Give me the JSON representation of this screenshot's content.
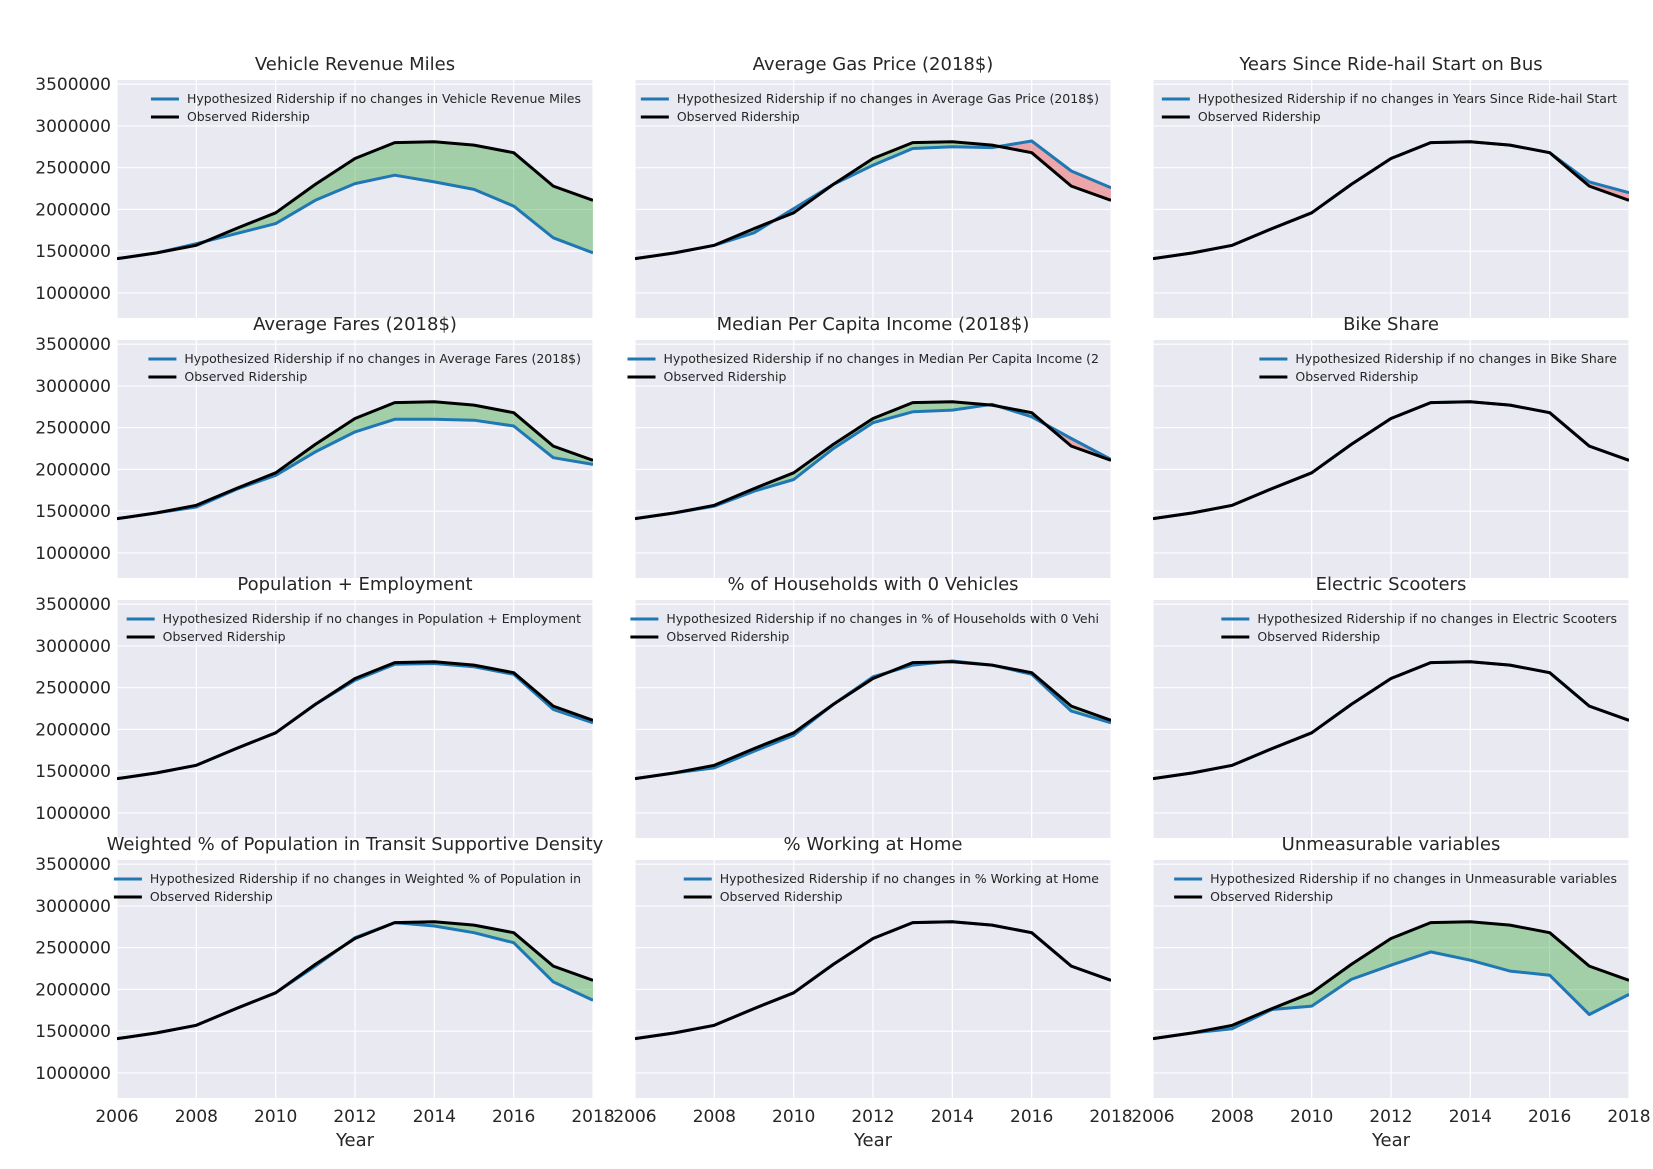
{
  "figure": {
    "background": "#ffffff",
    "colors": {
      "axes_bg": "#e9e9f1",
      "grid": "#ffffff",
      "observed": "#000000",
      "hypothesized": "#1f77b4",
      "fill_gain": "#4caf50",
      "fill_loss": "#ef5350"
    }
  },
  "chart_data": [
    {
      "type": "line",
      "title": "Vehicle Revenue Miles",
      "xlabel": "",
      "ylabel": "",
      "xlim": [
        2006,
        2018
      ],
      "ylim": [
        700000,
        3550000
      ],
      "xticks": [
        2006,
        2008,
        2010,
        2012,
        2014,
        2016,
        2018
      ],
      "yticks": [
        1000000,
        1500000,
        2000000,
        2500000,
        3000000,
        3500000
      ],
      "show_xticks": false,
      "show_yticks": true,
      "grid": true,
      "legend_location": "top-right",
      "x": [
        2006,
        2007,
        2008,
        2009,
        2010,
        2011,
        2012,
        2013,
        2014,
        2015,
        2016,
        2017,
        2018
      ],
      "series": [
        {
          "name": "Hypothesized Ridership if no changes in Vehicle Revenue Miles",
          "values": [
            1410000,
            1480000,
            1590000,
            1710000,
            1830000,
            2110000,
            2310000,
            2410000,
            2330000,
            2240000,
            2040000,
            1660000,
            1480000
          ]
        },
        {
          "name": "Observed Ridership",
          "values": [
            1410000,
            1480000,
            1570000,
            1770000,
            1960000,
            2300000,
            2610000,
            2800000,
            2810000,
            2770000,
            2680000,
            2280000,
            2110000
          ]
        }
      ]
    },
    {
      "type": "line",
      "title": "Average Gas Price (2018$)",
      "xlabel": "",
      "ylabel": "",
      "xlim": [
        2006,
        2018
      ],
      "ylim": [
        700000,
        3550000
      ],
      "xticks": [
        2006,
        2008,
        2010,
        2012,
        2014,
        2016,
        2018
      ],
      "yticks": [
        1000000,
        1500000,
        2000000,
        2500000,
        3000000,
        3500000
      ],
      "show_xticks": false,
      "show_yticks": false,
      "grid": true,
      "legend_location": "top-right",
      "x": [
        2006,
        2007,
        2008,
        2009,
        2010,
        2011,
        2012,
        2013,
        2014,
        2015,
        2016,
        2017,
        2018
      ],
      "series": [
        {
          "name": "Hypothesized Ridership if no changes in Average Gas Price (2018$)",
          "values": [
            1410000,
            1480000,
            1570000,
            1720000,
            2010000,
            2300000,
            2530000,
            2730000,
            2750000,
            2740000,
            2820000,
            2460000,
            2260000
          ]
        },
        {
          "name": "Observed Ridership",
          "values": [
            1410000,
            1480000,
            1570000,
            1770000,
            1960000,
            2300000,
            2610000,
            2800000,
            2810000,
            2770000,
            2680000,
            2280000,
            2110000
          ]
        }
      ]
    },
    {
      "type": "line",
      "title": "Years Since Ride-hail Start on Bus",
      "xlabel": "",
      "ylabel": "",
      "xlim": [
        2006,
        2018
      ],
      "ylim": [
        700000,
        3550000
      ],
      "xticks": [
        2006,
        2008,
        2010,
        2012,
        2014,
        2016,
        2018
      ],
      "yticks": [
        1000000,
        1500000,
        2000000,
        2500000,
        3000000,
        3500000
      ],
      "show_xticks": false,
      "show_yticks": false,
      "grid": true,
      "legend_location": "top-right",
      "x": [
        2006,
        2007,
        2008,
        2009,
        2010,
        2011,
        2012,
        2013,
        2014,
        2015,
        2016,
        2017,
        2018
      ],
      "series": [
        {
          "name": "Hypothesized Ridership if no changes in Years Since Ride-hail Start",
          "values": [
            1410000,
            1480000,
            1570000,
            1770000,
            1960000,
            2300000,
            2610000,
            2800000,
            2810000,
            2770000,
            2680000,
            2330000,
            2200000
          ]
        },
        {
          "name": "Observed Ridership",
          "values": [
            1410000,
            1480000,
            1570000,
            1770000,
            1960000,
            2300000,
            2610000,
            2800000,
            2810000,
            2770000,
            2680000,
            2280000,
            2110000
          ]
        }
      ]
    },
    {
      "type": "line",
      "title": "Average Fares (2018$)",
      "xlabel": "",
      "ylabel": "",
      "xlim": [
        2006,
        2018
      ],
      "ylim": [
        700000,
        3550000
      ],
      "xticks": [
        2006,
        2008,
        2010,
        2012,
        2014,
        2016,
        2018
      ],
      "yticks": [
        1000000,
        1500000,
        2000000,
        2500000,
        3000000,
        3500000
      ],
      "show_xticks": false,
      "show_yticks": true,
      "grid": true,
      "legend_location": "top-right",
      "x": [
        2006,
        2007,
        2008,
        2009,
        2010,
        2011,
        2012,
        2013,
        2014,
        2015,
        2016,
        2017,
        2018
      ],
      "series": [
        {
          "name": "Hypothesized Ridership if no changes in Average Fares (2018$)",
          "values": [
            1410000,
            1480000,
            1550000,
            1760000,
            1930000,
            2210000,
            2450000,
            2600000,
            2600000,
            2590000,
            2520000,
            2140000,
            2060000
          ]
        },
        {
          "name": "Observed Ridership",
          "values": [
            1410000,
            1480000,
            1570000,
            1770000,
            1960000,
            2300000,
            2610000,
            2800000,
            2810000,
            2770000,
            2680000,
            2280000,
            2110000
          ]
        }
      ]
    },
    {
      "type": "line",
      "title": "Median Per Capita Income (2018$)",
      "xlabel": "",
      "ylabel": "",
      "xlim": [
        2006,
        2018
      ],
      "ylim": [
        700000,
        3550000
      ],
      "xticks": [
        2006,
        2008,
        2010,
        2012,
        2014,
        2016,
        2018
      ],
      "yticks": [
        1000000,
        1500000,
        2000000,
        2500000,
        3000000,
        3500000
      ],
      "show_xticks": false,
      "show_yticks": false,
      "grid": true,
      "legend_location": "top-right",
      "x": [
        2006,
        2007,
        2008,
        2009,
        2010,
        2011,
        2012,
        2013,
        2014,
        2015,
        2016,
        2017,
        2018
      ],
      "series": [
        {
          "name": "Hypothesized Ridership if no changes in Median Per Capita Income (2",
          "values": [
            1410000,
            1480000,
            1560000,
            1740000,
            1880000,
            2250000,
            2560000,
            2690000,
            2710000,
            2780000,
            2630000,
            2370000,
            2120000
          ]
        },
        {
          "name": "Observed Ridership",
          "values": [
            1410000,
            1480000,
            1570000,
            1770000,
            1960000,
            2300000,
            2610000,
            2800000,
            2810000,
            2770000,
            2680000,
            2280000,
            2110000
          ]
        }
      ]
    },
    {
      "type": "line",
      "title": "Bike Share",
      "xlabel": "",
      "ylabel": "",
      "xlim": [
        2006,
        2018
      ],
      "ylim": [
        700000,
        3550000
      ],
      "xticks": [
        2006,
        2008,
        2010,
        2012,
        2014,
        2016,
        2018
      ],
      "yticks": [
        1000000,
        1500000,
        2000000,
        2500000,
        3000000,
        3500000
      ],
      "show_xticks": false,
      "show_yticks": false,
      "grid": true,
      "legend_location": "top-right",
      "x": [
        2006,
        2007,
        2008,
        2009,
        2010,
        2011,
        2012,
        2013,
        2014,
        2015,
        2016,
        2017,
        2018
      ],
      "series": [
        {
          "name": "Hypothesized Ridership if no changes in Bike Share",
          "values": [
            1410000,
            1480000,
            1570000,
            1770000,
            1960000,
            2300000,
            2610000,
            2800000,
            2810000,
            2770000,
            2680000,
            2280000,
            2110000
          ]
        },
        {
          "name": "Observed Ridership",
          "values": [
            1410000,
            1480000,
            1570000,
            1770000,
            1960000,
            2300000,
            2610000,
            2800000,
            2810000,
            2770000,
            2680000,
            2280000,
            2110000
          ]
        }
      ]
    },
    {
      "type": "line",
      "title": "Population + Employment",
      "xlabel": "",
      "ylabel": "",
      "xlim": [
        2006,
        2018
      ],
      "ylim": [
        700000,
        3550000
      ],
      "xticks": [
        2006,
        2008,
        2010,
        2012,
        2014,
        2016,
        2018
      ],
      "yticks": [
        1000000,
        1500000,
        2000000,
        2500000,
        3000000,
        3500000
      ],
      "show_xticks": false,
      "show_yticks": true,
      "grid": true,
      "legend_location": "top-right",
      "x": [
        2006,
        2007,
        2008,
        2009,
        2010,
        2011,
        2012,
        2013,
        2014,
        2015,
        2016,
        2017,
        2018
      ],
      "series": [
        {
          "name": "Hypothesized Ridership if no changes in Population + Employment",
          "values": [
            1410000,
            1480000,
            1570000,
            1770000,
            1960000,
            2300000,
            2590000,
            2780000,
            2790000,
            2750000,
            2660000,
            2240000,
            2080000
          ]
        },
        {
          "name": "Observed Ridership",
          "values": [
            1410000,
            1480000,
            1570000,
            1770000,
            1960000,
            2300000,
            2610000,
            2800000,
            2810000,
            2770000,
            2680000,
            2280000,
            2110000
          ]
        }
      ]
    },
    {
      "type": "line",
      "title": "% of Households with 0 Vehicles",
      "xlabel": "",
      "ylabel": "",
      "xlim": [
        2006,
        2018
      ],
      "ylim": [
        700000,
        3550000
      ],
      "xticks": [
        2006,
        2008,
        2010,
        2012,
        2014,
        2016,
        2018
      ],
      "yticks": [
        1000000,
        1500000,
        2000000,
        2500000,
        3000000,
        3500000
      ],
      "show_xticks": false,
      "show_yticks": false,
      "grid": true,
      "legend_location": "top-right",
      "x": [
        2006,
        2007,
        2008,
        2009,
        2010,
        2011,
        2012,
        2013,
        2014,
        2015,
        2016,
        2017,
        2018
      ],
      "series": [
        {
          "name": "Hypothesized Ridership if no changes in % of Households with 0 Vehi",
          "values": [
            1410000,
            1480000,
            1540000,
            1740000,
            1930000,
            2300000,
            2630000,
            2770000,
            2820000,
            2770000,
            2660000,
            2220000,
            2080000
          ]
        },
        {
          "name": "Observed Ridership",
          "values": [
            1410000,
            1480000,
            1570000,
            1770000,
            1960000,
            2300000,
            2610000,
            2800000,
            2810000,
            2770000,
            2680000,
            2280000,
            2110000
          ]
        }
      ]
    },
    {
      "type": "line",
      "title": "Electric Scooters",
      "xlabel": "",
      "ylabel": "",
      "xlim": [
        2006,
        2018
      ],
      "ylim": [
        700000,
        3550000
      ],
      "xticks": [
        2006,
        2008,
        2010,
        2012,
        2014,
        2016,
        2018
      ],
      "yticks": [
        1000000,
        1500000,
        2000000,
        2500000,
        3000000,
        3500000
      ],
      "show_xticks": false,
      "show_yticks": false,
      "grid": true,
      "legend_location": "top-right",
      "x": [
        2006,
        2007,
        2008,
        2009,
        2010,
        2011,
        2012,
        2013,
        2014,
        2015,
        2016,
        2017,
        2018
      ],
      "series": [
        {
          "name": "Hypothesized Ridership if no changes in Electric Scooters",
          "values": [
            1410000,
            1480000,
            1570000,
            1770000,
            1960000,
            2300000,
            2610000,
            2800000,
            2810000,
            2770000,
            2680000,
            2280000,
            2110000
          ]
        },
        {
          "name": "Observed Ridership",
          "values": [
            1410000,
            1480000,
            1570000,
            1770000,
            1960000,
            2300000,
            2610000,
            2800000,
            2810000,
            2770000,
            2680000,
            2280000,
            2110000
          ]
        }
      ]
    },
    {
      "type": "line",
      "title": "Weighted % of Population in Transit Supportive Density",
      "xlabel": "Year",
      "ylabel": "",
      "xlim": [
        2006,
        2018
      ],
      "ylim": [
        700000,
        3550000
      ],
      "xticks": [
        2006,
        2008,
        2010,
        2012,
        2014,
        2016,
        2018
      ],
      "yticks": [
        1000000,
        1500000,
        2000000,
        2500000,
        3000000,
        3500000
      ],
      "show_xticks": true,
      "show_yticks": true,
      "grid": true,
      "legend_location": "top-right",
      "x": [
        2006,
        2007,
        2008,
        2009,
        2010,
        2011,
        2012,
        2013,
        2014,
        2015,
        2016,
        2017,
        2018
      ],
      "series": [
        {
          "name": "Hypothesized Ridership if no changes in Weighted % of Population in",
          "values": [
            1410000,
            1480000,
            1570000,
            1770000,
            1960000,
            2280000,
            2620000,
            2800000,
            2760000,
            2680000,
            2560000,
            2090000,
            1870000
          ]
        },
        {
          "name": "Observed Ridership",
          "values": [
            1410000,
            1480000,
            1570000,
            1770000,
            1960000,
            2300000,
            2610000,
            2800000,
            2810000,
            2770000,
            2680000,
            2280000,
            2110000
          ]
        }
      ]
    },
    {
      "type": "line",
      "title": "% Working at Home",
      "xlabel": "Year",
      "ylabel": "",
      "xlim": [
        2006,
        2018
      ],
      "ylim": [
        700000,
        3550000
      ],
      "xticks": [
        2006,
        2008,
        2010,
        2012,
        2014,
        2016,
        2018
      ],
      "yticks": [
        1000000,
        1500000,
        2000000,
        2500000,
        3000000,
        3500000
      ],
      "show_xticks": true,
      "show_yticks": false,
      "grid": true,
      "legend_location": "top-right",
      "x": [
        2006,
        2007,
        2008,
        2009,
        2010,
        2011,
        2012,
        2013,
        2014,
        2015,
        2016,
        2017,
        2018
      ],
      "series": [
        {
          "name": "Hypothesized Ridership if no changes in % Working at Home",
          "values": [
            1410000,
            1480000,
            1570000,
            1770000,
            1960000,
            2300000,
            2610000,
            2800000,
            2810000,
            2770000,
            2680000,
            2280000,
            2110000
          ]
        },
        {
          "name": "Observed Ridership",
          "values": [
            1410000,
            1480000,
            1570000,
            1770000,
            1960000,
            2300000,
            2610000,
            2800000,
            2810000,
            2770000,
            2680000,
            2280000,
            2110000
          ]
        }
      ]
    },
    {
      "type": "line",
      "title": "Unmeasurable variables",
      "xlabel": "Year",
      "ylabel": "",
      "xlim": [
        2006,
        2018
      ],
      "ylim": [
        700000,
        3550000
      ],
      "xticks": [
        2006,
        2008,
        2010,
        2012,
        2014,
        2016,
        2018
      ],
      "yticks": [
        1000000,
        1500000,
        2000000,
        2500000,
        3000000,
        3500000
      ],
      "show_xticks": true,
      "show_yticks": false,
      "grid": true,
      "legend_location": "top-right",
      "x": [
        2006,
        2007,
        2008,
        2009,
        2010,
        2011,
        2012,
        2013,
        2014,
        2015,
        2016,
        2017,
        2018
      ],
      "series": [
        {
          "name": "Hypothesized Ridership if no changes in Unmeasurable variables",
          "values": [
            1410000,
            1480000,
            1530000,
            1760000,
            1800000,
            2120000,
            2290000,
            2450000,
            2350000,
            2220000,
            2170000,
            1700000,
            1940000
          ]
        },
        {
          "name": "Observed Ridership",
          "values": [
            1410000,
            1480000,
            1570000,
            1770000,
            1960000,
            2300000,
            2610000,
            2800000,
            2810000,
            2770000,
            2680000,
            2280000,
            2110000
          ]
        }
      ]
    }
  ]
}
